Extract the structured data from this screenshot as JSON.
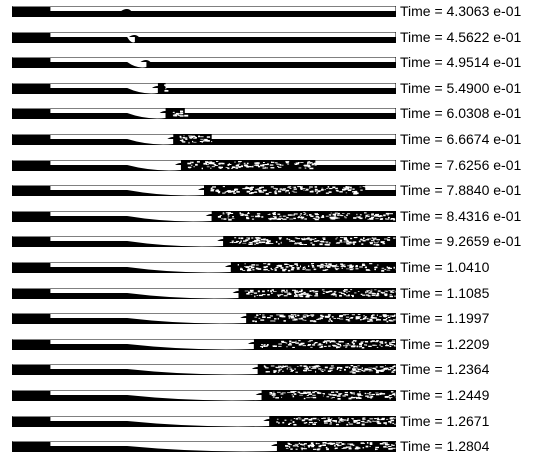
{
  "figure": {
    "frames": [
      {
        "label": "Time = 4.3063 e-01",
        "front_fraction": 0.3,
        "spray_extent": 0.0
      },
      {
        "label": "Time = 4.5622 e-01",
        "front_fraction": 0.32,
        "spray_extent": 0.0
      },
      {
        "label": "Time = 4.9514 e-01",
        "front_fraction": 0.35,
        "spray_extent": 0.0
      },
      {
        "label": "Time = 5.4900 e-01",
        "front_fraction": 0.38,
        "spray_extent": 0.02
      },
      {
        "label": "Time = 6.0308 e-01",
        "front_fraction": 0.4,
        "spray_extent": 0.05
      },
      {
        "label": "Time = 6.6674 e-01",
        "front_fraction": 0.42,
        "spray_extent": 0.1
      },
      {
        "label": "Time = 7.6256 e-01",
        "front_fraction": 0.44,
        "spray_extent": 0.35
      },
      {
        "label": "Time = 7.8840 e-01",
        "front_fraction": 0.5,
        "spray_extent": 0.42
      },
      {
        "label": "Time = 8.4316 e-01",
        "front_fraction": 0.52,
        "spray_extent": 0.5
      },
      {
        "label": "Time = 9.2659 e-01",
        "front_fraction": 0.55,
        "spray_extent": 0.55
      },
      {
        "label": "Time = 1.0410",
        "front_fraction": 0.57,
        "spray_extent": 0.6
      },
      {
        "label": "Time = 1.1085",
        "front_fraction": 0.59,
        "spray_extent": 0.62
      },
      {
        "label": "Time = 1.1997",
        "front_fraction": 0.61,
        "spray_extent": 0.64
      },
      {
        "label": "Time = 1.2209",
        "front_fraction": 0.63,
        "spray_extent": 0.66
      },
      {
        "label": "Time = 1.2364",
        "front_fraction": 0.64,
        "spray_extent": 0.67
      },
      {
        "label": "Time = 1.2449",
        "front_fraction": 0.65,
        "spray_extent": 0.68
      },
      {
        "label": "Time = 1.2671",
        "front_fraction": 0.67,
        "spray_extent": 0.7
      },
      {
        "label": "Time = 1.2804",
        "front_fraction": 0.69,
        "spray_extent": 0.72
      }
    ]
  }
}
